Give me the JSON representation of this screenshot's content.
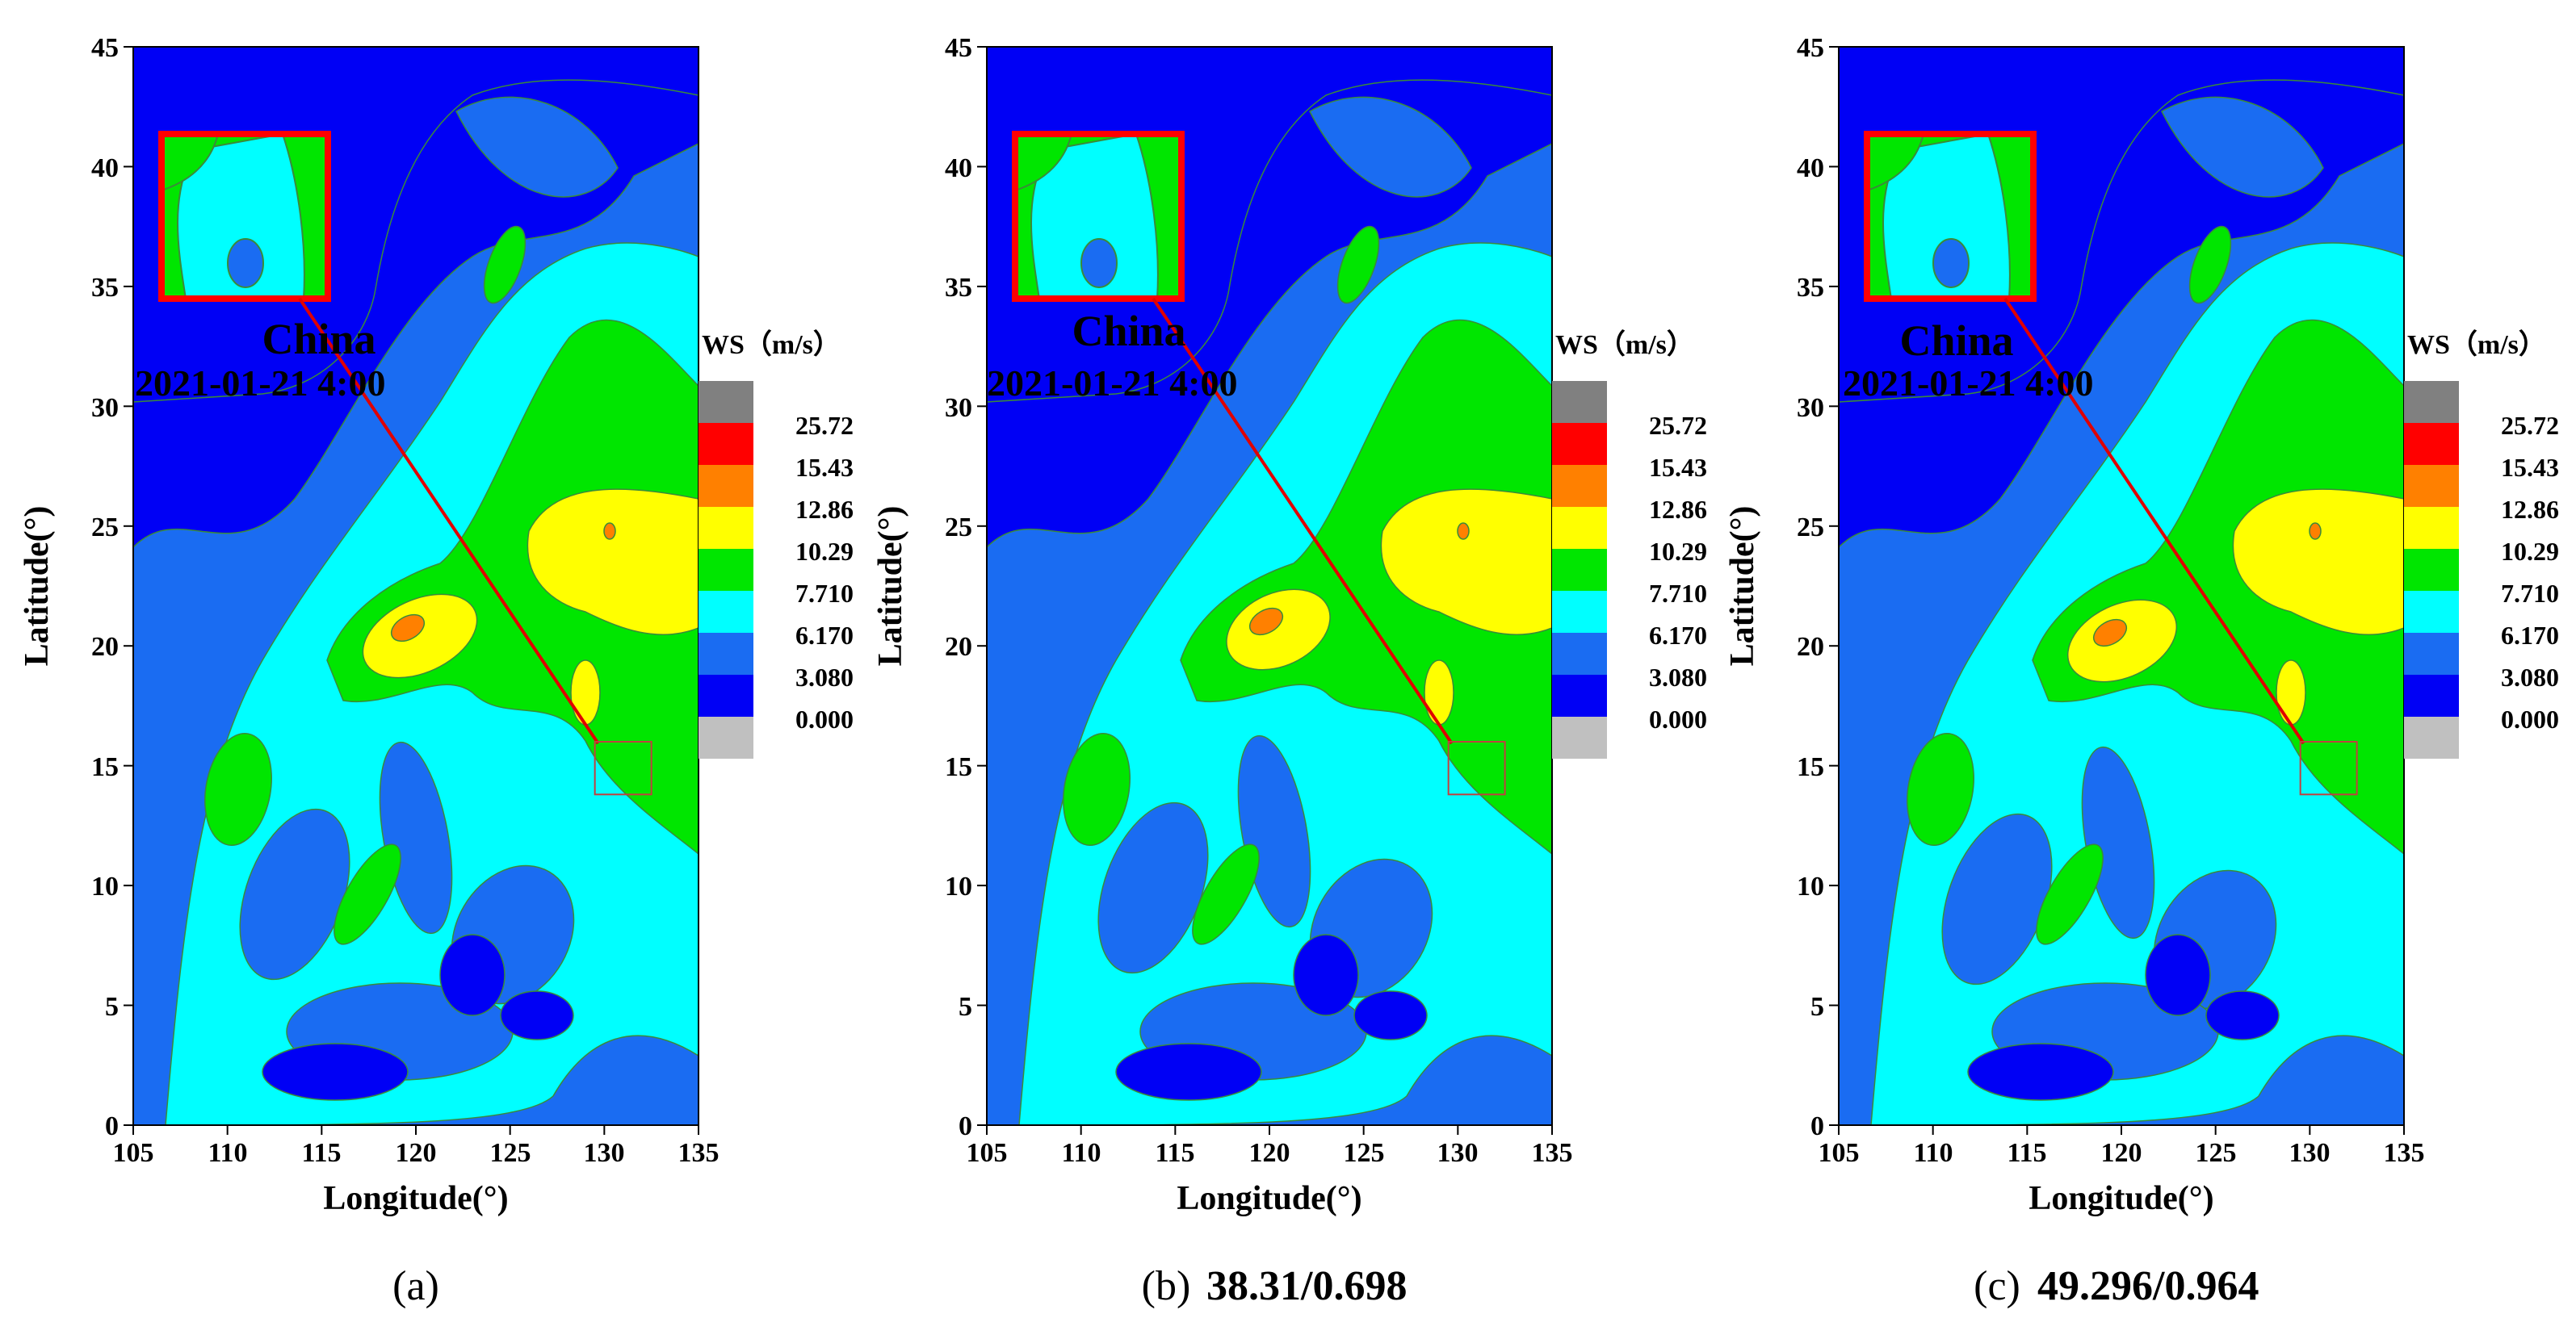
{
  "colors": {
    "levels": [
      "#0000f5",
      "#1a6cf2",
      "#00ffff",
      "#00e600",
      "#ffff00",
      "#ff8000",
      "#ff0000",
      "#808080"
    ],
    "below_min": "#c0c0c0",
    "contour": "#3a8a3a",
    "inset_border": "#ff0000",
    "leader_line": "#e00000",
    "target_box": "#c04040"
  },
  "shared": {
    "x_axis_title": "Longitude(°)",
    "y_axis_title": "Latitude(°)",
    "x_ticks": [
      "105",
      "110",
      "115",
      "120",
      "125",
      "130",
      "135"
    ],
    "y_ticks": [
      "0",
      "5",
      "10",
      "15",
      "20",
      "25",
      "30",
      "35",
      "40",
      "45"
    ],
    "region_label": "China",
    "time_label": "2021-01-21 4:00",
    "legend_title": "WS（m/s）",
    "legend_levels": [
      "25.72",
      "15.43",
      "12.86",
      "10.29",
      "7.710",
      "6.170",
      "3.080",
      "0.000"
    ]
  },
  "map": {
    "extent": {
      "lon": [
        105,
        135
      ],
      "lat": [
        0,
        45
      ]
    },
    "target_box": {
      "lon": [
        129.5,
        132.5
      ],
      "lat": [
        13.8,
        16.0
      ]
    },
    "zoom_inset_region": {
      "lon": [
        106.5,
        115.5
      ],
      "lat": [
        34.3,
        41.2
      ]
    }
  },
  "panels": [
    {
      "caption_letter": "(a)",
      "caption_metric": ""
    },
    {
      "caption_letter": "(b)",
      "caption_metric": "38.31/0.698"
    },
    {
      "caption_letter": "(c)",
      "caption_metric": "49.296/0.964"
    }
  ]
}
